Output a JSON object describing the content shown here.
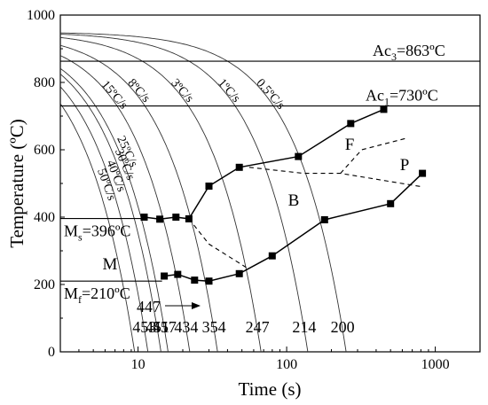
{
  "chart_data": {
    "type": "line",
    "title": "",
    "xlabel": "Time (s)",
    "ylabel": "Temperature (ºC)",
    "xscale": "log",
    "xlim": [
      3,
      2000
    ],
    "ylim": [
      0,
      1000
    ],
    "x_tick_labels": [
      "10",
      "100",
      "1000"
    ],
    "x_tick_values": [
      10,
      100,
      1000
    ],
    "y_tick_labels": [
      "0",
      "200",
      "400",
      "600",
      "800",
      "1000"
    ],
    "y_tick_values": [
      0,
      200,
      400,
      600,
      800,
      1000
    ],
    "grid": false,
    "reference_lines": [
      {
        "name": "Ac3",
        "value": 863,
        "label_main": "Ac",
        "label_sub": "3",
        "label_rest": "=863ºC"
      },
      {
        "name": "Ac1",
        "value": 730,
        "label_main": "Ac",
        "label_sub": "1",
        "label_rest": "=730ºC"
      },
      {
        "name": "Ms",
        "value": 396,
        "xmax": 11,
        "label_main": "M",
        "label_sub": "s",
        "label_rest": "=396ºC"
      },
      {
        "name": "Mf",
        "value": 210,
        "xmax": 14.5,
        "label_main": "M",
        "label_sub": "f",
        "label_rest": "=210ºC"
      }
    ],
    "cooling_curves": [
      {
        "rate": "50ºC/s",
        "k": 51,
        "final_hardness": ""
      },
      {
        "rate": "40ºC/s",
        "k": 39,
        "final_hardness": "453"
      },
      {
        "rate": "30ºC/s",
        "k": 30,
        "final_hardness": "451"
      },
      {
        "rate": "25ºC/s",
        "k": 26,
        "final_hardness": "457"
      },
      {
        "rate": "15ºC/s",
        "k": 16.8,
        "final_hardness": "434"
      },
      {
        "rate": "8ºC/s",
        "k": 9.6,
        "final_hardness": "354"
      },
      {
        "rate": "3ºC/s",
        "k": 4.0,
        "final_hardness": "247"
      },
      {
        "rate": "1ºC/s",
        "k": 1.56,
        "final_hardness": "214"
      },
      {
        "rate": "0.5ºC/s",
        "k": 0.72,
        "final_hardness": "200"
      }
    ],
    "series": [
      {
        "name": "",
        "x": [
          11,
          14,
          18,
          22,
          30,
          48,
          120,
          270,
          450
        ],
        "y": [
          400,
          394,
          400,
          395,
          492,
          548,
          580,
          678,
          720
        ]
      },
      {
        "name": "",
        "x": [
          15,
          18.5,
          24,
          30,
          48,
          80,
          180,
          500,
          820
        ],
        "y": [
          225,
          230,
          213,
          210,
          232,
          285,
          392,
          440,
          530
        ]
      },
      {
        "name": "",
        "x": [
          22,
          30,
          56
        ],
        "y": [
          395,
          320,
          245
        ],
        "style": "dashed"
      },
      {
        "name": "",
        "x": [
          56,
          130,
          230,
          820
        ],
        "y": [
          548,
          530,
          530,
          490
        ],
        "style": "dashed"
      },
      {
        "name": "",
        "x": [
          230,
          320,
          650
        ],
        "y": [
          530,
          600,
          635
        ],
        "style": "dashed"
      }
    ],
    "phase_labels": [
      "B",
      "F",
      "P",
      "M"
    ],
    "annotations": {
      "arrow_label": "447"
    }
  }
}
